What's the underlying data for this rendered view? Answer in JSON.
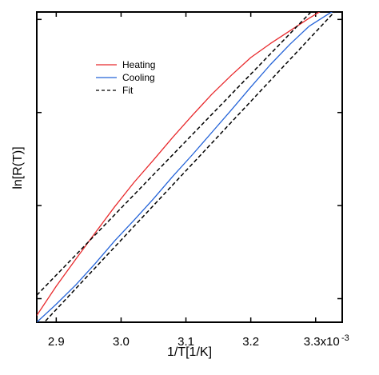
{
  "chart_data": {
    "type": "line",
    "title": "",
    "xlabel": "1/T[1/K]",
    "ylabel": "ln[R(T)]",
    "xlim": [
      2.87,
      3.341
    ],
    "ylim": [
      0,
      1
    ],
    "x_tick_labels": [
      "2.9",
      "3.0",
      "3.1",
      "3.2",
      "3.3x10"
    ],
    "x_ticks": [
      2.9,
      3.0,
      3.1,
      3.2,
      3.3
    ],
    "x_exponent_label": "-3",
    "y_ticks_unlabeled": [
      0.076,
      0.376,
      0.676,
      0.976
    ],
    "legend": {
      "placement": "top-left",
      "entries": [
        {
          "label": "Heating",
          "color": "#e8292c",
          "style": "solid"
        },
        {
          "label": "Cooling",
          "color": "#2463d8",
          "style": "solid"
        },
        {
          "label": "Fit",
          "color": "#000000",
          "style": "dashed"
        }
      ]
    },
    "series": [
      {
        "name": "Heating",
        "color": "#e8292c",
        "style": "solid",
        "x": [
          2.87,
          2.9,
          2.93,
          2.96,
          2.99,
          3.02,
          3.05,
          3.08,
          3.11,
          3.14,
          3.17,
          3.2,
          3.23,
          3.26,
          3.29,
          3.32,
          3.341
        ],
        "y": [
          0.022,
          0.116,
          0.203,
          0.288,
          0.372,
          0.451,
          0.523,
          0.597,
          0.667,
          0.735,
          0.796,
          0.853,
          0.898,
          0.939,
          0.98,
          1.018,
          1.055
        ]
      },
      {
        "name": "Cooling",
        "color": "#2463d8",
        "style": "solid",
        "x": [
          2.87,
          2.9,
          2.93,
          2.96,
          2.99,
          3.02,
          3.05,
          3.08,
          3.11,
          3.14,
          3.17,
          3.2,
          3.23,
          3.26,
          3.29,
          3.32,
          3.341
        ],
        "y": [
          0.0,
          0.058,
          0.12,
          0.189,
          0.262,
          0.329,
          0.398,
          0.471,
          0.54,
          0.612,
          0.684,
          0.758,
          0.83,
          0.895,
          0.954,
          0.994,
          1.019
        ]
      },
      {
        "name": "Fit",
        "color": "#000000",
        "style": "dashed",
        "x": [
          2.87,
          3.341
        ],
        "y": [
          0.087,
          1.104
        ]
      },
      {
        "name": "Fit",
        "color": "#000000",
        "style": "dashed",
        "x": [
          2.87,
          3.341
        ],
        "y": [
          -0.026,
          1.027
        ]
      }
    ]
  }
}
